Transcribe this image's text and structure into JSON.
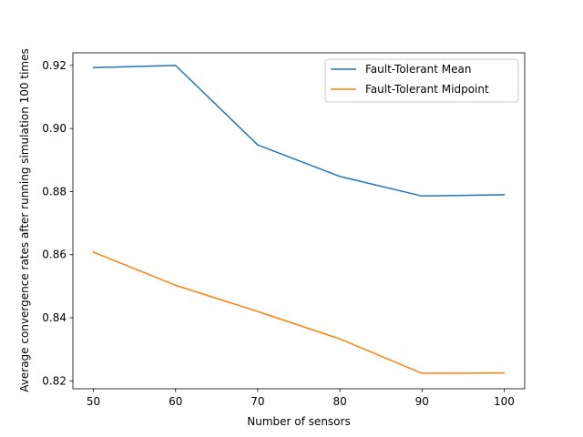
{
  "chart_data": {
    "type": "line",
    "title": "",
    "xlabel": "Number of sensors",
    "ylabel": "Average convergence rates after running simulation 100 times",
    "x": [
      50,
      60,
      70,
      80,
      90,
      100
    ],
    "xlim": [
      47.5,
      102.5
    ],
    "ylim": [
      0.8175,
      0.924
    ],
    "xticks": [
      50,
      60,
      70,
      80,
      90,
      100
    ],
    "xtick_labels": [
      "50",
      "60",
      "70",
      "80",
      "90",
      "100"
    ],
    "yticks": [
      0.82,
      0.84,
      0.86,
      0.88,
      0.9,
      0.92
    ],
    "ytick_labels": [
      "0.82",
      "0.84",
      "0.86",
      "0.88",
      "0.90",
      "0.92"
    ],
    "grid": false,
    "legend_position": "top-right",
    "series": [
      {
        "name": "Fault-Tolerant Mean",
        "color": "#1f77b4",
        "values": [
          0.9193,
          0.92,
          0.8948,
          0.8848,
          0.8786,
          0.879
        ]
      },
      {
        "name": "Fault-Tolerant Midpoint",
        "color": "#ff7f0e",
        "values": [
          0.8608,
          0.8503,
          0.842,
          0.8333,
          0.8224,
          0.8225
        ]
      }
    ]
  }
}
